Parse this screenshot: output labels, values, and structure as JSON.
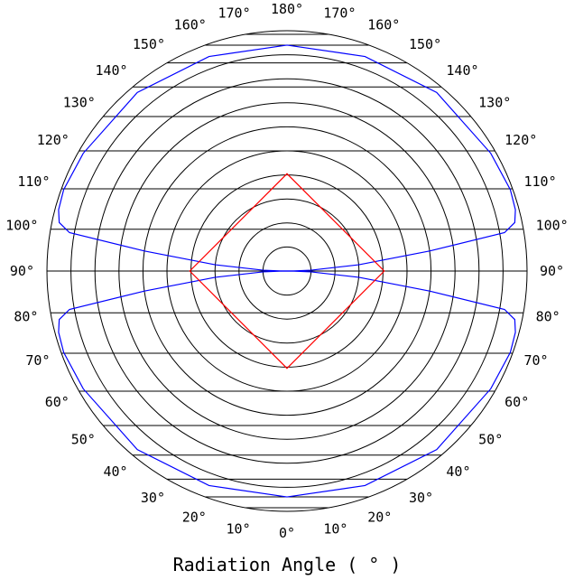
{
  "chart_data": {
    "type": "polar-line",
    "xlabel": "Radiation Angle ( ° )",
    "grid": true,
    "angle_unit": "°",
    "angle_step": 10,
    "left_tick_labels": [
      "0°",
      "10°",
      "20°",
      "30°",
      "40°",
      "50°",
      "60°",
      "70°",
      "80°",
      "90°",
      "100°",
      "110°",
      "120°",
      "130°",
      "140°",
      "150°",
      "160°",
      "170°",
      "180°"
    ],
    "right_tick_labels": [
      "10°",
      "20°",
      "30°",
      "40°",
      "50°",
      "60°",
      "70°",
      "80°",
      "90°",
      "100°",
      "110°",
      "120°",
      "130°",
      "140°",
      "150°",
      "160°",
      "170°"
    ],
    "radial_range": [
      0,
      1
    ],
    "radial_rings": 10,
    "series": [
      {
        "color": "#0000ff",
        "points": [
          {
            "angle": 0,
            "r": 0.94
          },
          {
            "angle": 20,
            "r": 0.95
          },
          {
            "angle": 40,
            "r": 0.97
          },
          {
            "angle": 60,
            "r": 0.98
          },
          {
            "angle": 70,
            "r": 0.99
          },
          {
            "angle": 75,
            "r": 0.985
          },
          {
            "angle": 78,
            "r": 0.97
          },
          {
            "angle": 80,
            "r": 0.92
          },
          {
            "angle": 82,
            "r": 0.6
          },
          {
            "angle": 85,
            "r": 0.3
          },
          {
            "angle": 88,
            "r": 0.1
          },
          {
            "angle": 90,
            "r": 0.02
          }
        ]
      },
      {
        "color": "#ff0000",
        "points": [
          {
            "angle": 0,
            "r": 0.405
          },
          {
            "angle": 90,
            "r": 0.405
          },
          {
            "angle": 180,
            "r": 0.405
          }
        ]
      }
    ]
  }
}
